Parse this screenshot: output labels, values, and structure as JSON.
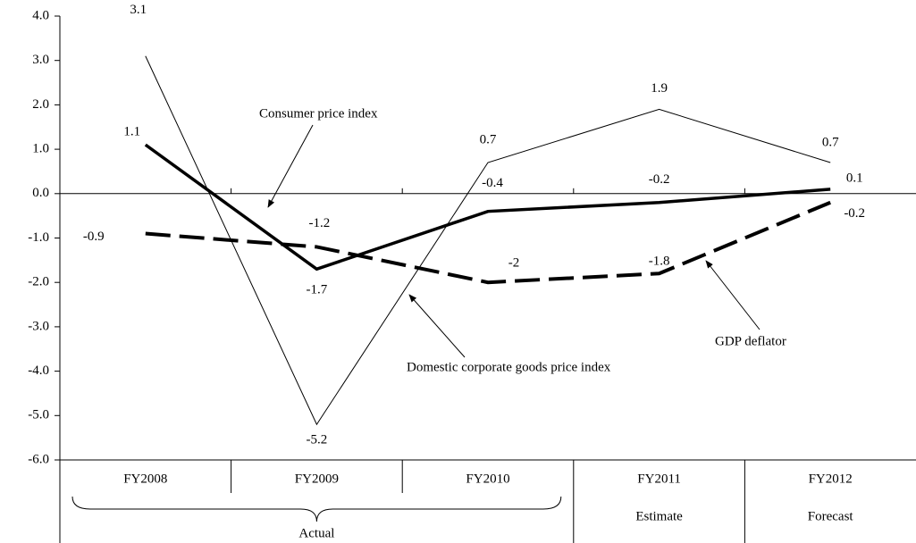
{
  "chart_data": {
    "type": "line",
    "categories": [
      "FY2008",
      "FY2009",
      "FY2010",
      "FY2011",
      "FY2012"
    ],
    "group_labels": [
      "Actual",
      "Estimate",
      "Forecast"
    ],
    "series": [
      {
        "name": "Domestic corporate goods price index",
        "color": "#000000",
        "values": [
          3.1,
          -5.2,
          0.7,
          1.9,
          0.7
        ]
      },
      {
        "name": "Consumer price index",
        "color": "#000000",
        "values": [
          1.1,
          -1.7,
          -0.4,
          -0.2,
          0.1
        ]
      },
      {
        "name": "GDP deflator",
        "color": "#000000",
        "values": [
          -0.9,
          -1.2,
          -2.0,
          -1.8,
          -0.2
        ]
      }
    ],
    "ylim": [
      -6,
      4
    ],
    "yticks": [
      {
        "value": -6,
        "label": "-6.0"
      },
      {
        "value": -5,
        "label": "-5.0"
      },
      {
        "value": -4,
        "label": "-4.0"
      },
      {
        "value": -3,
        "label": "-3.0"
      },
      {
        "value": -2,
        "label": "-2.0"
      },
      {
        "value": -1,
        "label": "-1.0"
      },
      {
        "value": 0,
        "label": "0.0"
      },
      {
        "value": 1,
        "label": "1.0"
      },
      {
        "value": 2,
        "label": "2.0"
      },
      {
        "value": 3,
        "label": "3.0"
      },
      {
        "value": 4,
        "label": "4.0"
      }
    ]
  }
}
